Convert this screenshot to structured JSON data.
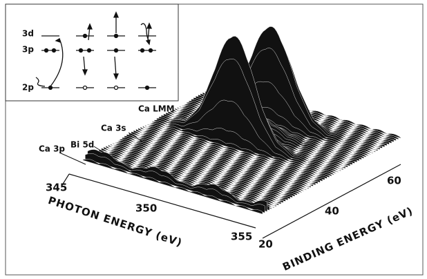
{
  "inset": {
    "levels": [
      "3d",
      "3p",
      "2p"
    ]
  },
  "peak_labels": [
    "Ca LMM",
    "Ca 3s",
    "Bi 5d",
    "Ca 3p"
  ],
  "photon_axis": {
    "label": "PHOTON ENERGY (eV)",
    "ticks": [
      "345",
      "350",
      "355"
    ]
  },
  "binding_axis": {
    "label": "BINDING ENERGY (eV)",
    "ticks": [
      "20",
      "40",
      "60"
    ]
  }
}
